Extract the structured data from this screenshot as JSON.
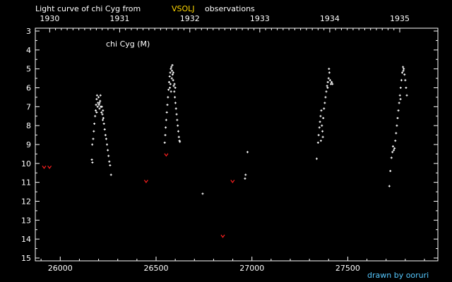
{
  "chart_data": {
    "type": "scatter",
    "title_prefix": "Light curve of chi Cyg from",
    "title_source": "VSOLJ",
    "title_suffix": "observations",
    "series_label": "chi Cyg (M)",
    "credit": "drawn by ooruri",
    "xlabel": "",
    "ylabel": "",
    "xlim": [
      25870,
      27970
    ],
    "ylim": [
      2.85,
      15.15
    ],
    "y_inverted": true,
    "grid": false,
    "x_ticks": [
      26000,
      26500,
      27000,
      27500
    ],
    "x_tick_labels": [
      "26000",
      "26500",
      "27000",
      "27500"
    ],
    "y_ticks": [
      3,
      4,
      5,
      6,
      7,
      8,
      9,
      10,
      11,
      12,
      13,
      14,
      15
    ],
    "y_tick_labels": [
      "3",
      "4",
      "5",
      "6",
      "7",
      "8",
      "9",
      "10",
      "11",
      "12",
      "13",
      "14",
      "15"
    ],
    "year_ticks": [
      25945,
      26310,
      26676,
      27041,
      27406,
      27771
    ],
    "year_labels": [
      "1930",
      "1931",
      "1932",
      "1933",
      "1934",
      "1935"
    ],
    "colors": {
      "background": "#000000",
      "foreground": "#ffffff",
      "source": "#ffd700",
      "upper_limit": "#ff2020",
      "credit": "#55c8ff"
    },
    "series": [
      {
        "kind": "observation",
        "points": [
          [
            26165,
            9.8
          ],
          [
            26167,
            9.0
          ],
          [
            26168,
            9.95
          ],
          [
            26172,
            8.7
          ],
          [
            26175,
            8.3
          ],
          [
            26178,
            7.9
          ],
          [
            26182,
            7.5
          ],
          [
            26185,
            7.2
          ],
          [
            26187,
            6.9
          ],
          [
            26190,
            6.6
          ],
          [
            26192,
            6.4
          ],
          [
            26195,
            7.0
          ],
          [
            26197,
            6.8
          ],
          [
            26200,
            6.5
          ],
          [
            26202,
            6.9
          ],
          [
            26205,
            7.1
          ],
          [
            26208,
            6.7
          ],
          [
            26210,
            6.4
          ],
          [
            26212,
            7.0
          ],
          [
            26215,
            7.3
          ],
          [
            26217,
            7.0
          ],
          [
            26220,
            7.4
          ],
          [
            26222,
            7.7
          ],
          [
            26225,
            7.6
          ],
          [
            26228,
            7.9
          ],
          [
            26232,
            8.2
          ],
          [
            26236,
            8.5
          ],
          [
            26240,
            8.7
          ],
          [
            26244,
            9.0
          ],
          [
            26248,
            9.3
          ],
          [
            26252,
            9.6
          ],
          [
            26256,
            9.9
          ],
          [
            26260,
            10.1
          ],
          [
            26265,
            10.6
          ],
          [
            26190,
            7.3
          ],
          [
            26205,
            6.8
          ],
          [
            26223,
            7.2
          ],
          [
            26545,
            8.9
          ],
          [
            26548,
            8.5
          ],
          [
            26550,
            8.1
          ],
          [
            26553,
            7.7
          ],
          [
            26556,
            7.3
          ],
          [
            26559,
            6.9
          ],
          [
            26562,
            6.5
          ],
          [
            26565,
            6.1
          ],
          [
            26568,
            5.7
          ],
          [
            26571,
            5.4
          ],
          [
            26574,
            5.2
          ],
          [
            26577,
            5.0
          ],
          [
            26580,
            4.9
          ],
          [
            26583,
            5.1
          ],
          [
            26586,
            5.3
          ],
          [
            26589,
            5.6
          ],
          [
            26592,
            5.9
          ],
          [
            26595,
            6.2
          ],
          [
            26598,
            6.5
          ],
          [
            26601,
            6.8
          ],
          [
            26604,
            7.1
          ],
          [
            26607,
            7.4
          ],
          [
            26610,
            7.7
          ],
          [
            26613,
            8.0
          ],
          [
            26616,
            8.3
          ],
          [
            26619,
            8.6
          ],
          [
            26622,
            8.8
          ],
          [
            26575,
            5.8
          ],
          [
            26582,
            5.5
          ],
          [
            26578,
            6.2
          ],
          [
            26590,
            5.2
          ],
          [
            26596,
            5.8
          ],
          [
            26572,
            6.0
          ],
          [
            26585,
            4.8
          ],
          [
            26600,
            6.0
          ],
          [
            26624,
            8.85
          ],
          [
            26743,
            11.6
          ],
          [
            26964,
            10.8
          ],
          [
            26967,
            10.6
          ],
          [
            26977,
            9.4
          ],
          [
            27338,
            9.75
          ],
          [
            27345,
            8.9
          ],
          [
            27348,
            8.5
          ],
          [
            27352,
            8.1
          ],
          [
            27355,
            7.8
          ],
          [
            27358,
            7.5
          ],
          [
            27362,
            7.2
          ],
          [
            27365,
            8.0
          ],
          [
            27368,
            8.3
          ],
          [
            27372,
            7.6
          ],
          [
            27376,
            7.1
          ],
          [
            27380,
            6.8
          ],
          [
            27384,
            6.5
          ],
          [
            27388,
            6.2
          ],
          [
            27392,
            5.9
          ],
          [
            27396,
            5.7
          ],
          [
            27400,
            5.5
          ],
          [
            27404,
            5.2
          ],
          [
            27408,
            5.6
          ],
          [
            27412,
            5.8
          ],
          [
            27416,
            5.7
          ],
          [
            27420,
            5.8
          ],
          [
            27402,
            5.0
          ],
          [
            27395,
            6.0
          ],
          [
            27370,
            8.6
          ],
          [
            27360,
            8.8
          ],
          [
            27717,
            11.2
          ],
          [
            27722,
            10.4
          ],
          [
            27728,
            9.7
          ],
          [
            27733,
            9.4
          ],
          [
            27736,
            9.1
          ],
          [
            27740,
            9.3
          ],
          [
            27744,
            9.2
          ],
          [
            27748,
            8.8
          ],
          [
            27752,
            8.4
          ],
          [
            27756,
            8.0
          ],
          [
            27760,
            7.6
          ],
          [
            27764,
            7.2
          ],
          [
            27768,
            6.8
          ],
          [
            27772,
            6.4
          ],
          [
            27776,
            6.0
          ],
          [
            27780,
            5.6
          ],
          [
            27784,
            5.2
          ],
          [
            27788,
            4.9
          ],
          [
            27792,
            5.0
          ],
          [
            27796,
            5.3
          ],
          [
            27800,
            5.6
          ],
          [
            27804,
            6.0
          ],
          [
            27808,
            6.4
          ],
          [
            27775,
            6.6
          ],
          [
            27790,
            5.1
          ]
        ]
      },
      {
        "kind": "upper_limit",
        "points": [
          [
            25916,
            10.2
          ],
          [
            25944,
            10.2
          ],
          [
            26448,
            10.95
          ],
          [
            26553,
            9.55
          ],
          [
            26848,
            13.85
          ],
          [
            26899,
            10.95
          ]
        ]
      }
    ]
  }
}
